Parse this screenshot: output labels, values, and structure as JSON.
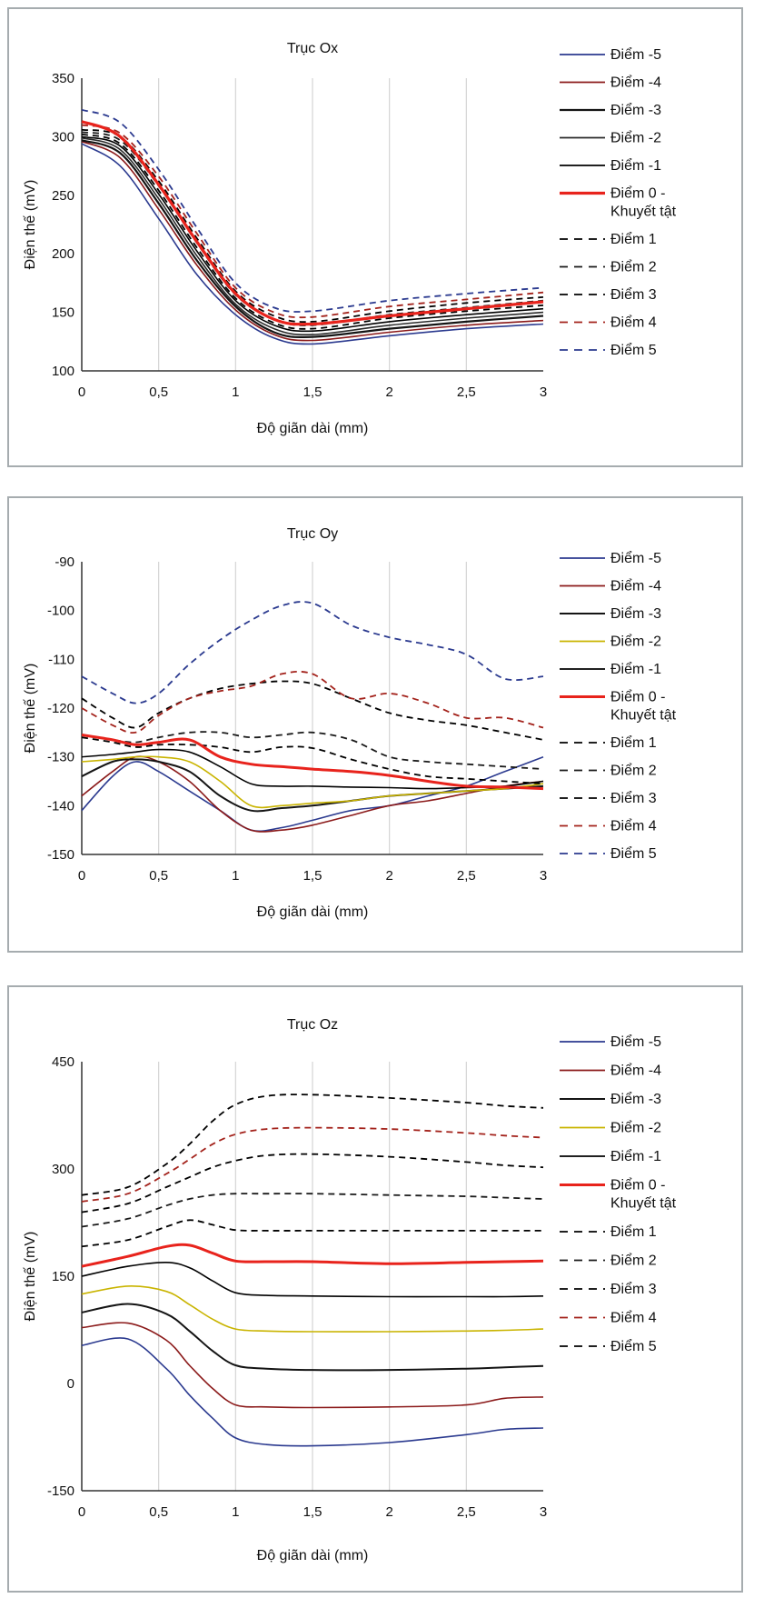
{
  "chart_data": [
    {
      "type": "line",
      "title": "Trục Ox",
      "xlabel": "Độ giãn dài (mm)",
      "ylabel": "Điện thế (mV)",
      "xlim": [
        0,
        3
      ],
      "ylim": [
        100,
        350
      ],
      "xticks": [
        "0",
        "0,5",
        "1",
        "1,5",
        "2",
        "2,5",
        "3"
      ],
      "yticks": [
        "100",
        "150",
        "200",
        "250",
        "300",
        "350"
      ],
      "grid": "vertical",
      "legend": "right",
      "x": [
        0,
        0.25,
        0.5,
        0.75,
        1.0,
        1.25,
        1.5,
        2.0,
        2.5,
        3.0
      ],
      "series": [
        {
          "name": "Điểm -5",
          "color": "#2b3a8f",
          "dash": "solid",
          "width": 1.6,
          "values": [
            294,
            275,
            230,
            182,
            148,
            128,
            123,
            130,
            136,
            140
          ]
        },
        {
          "name": "Điểm -4",
          "color": "#8b1a1a",
          "dash": "solid",
          "width": 1.6,
          "values": [
            296,
            282,
            238,
            190,
            152,
            131,
            126,
            133,
            139,
            143
          ]
        },
        {
          "name": "Điểm -3",
          "color": "#141414",
          "dash": "solid",
          "width": 2.2,
          "values": [
            297,
            286,
            243,
            194,
            155,
            133,
            129,
            136,
            142,
            147
          ]
        },
        {
          "name": "Điểm -2",
          "color": "#2a2a2a",
          "dash": "solid",
          "width": 1.6,
          "values": [
            299,
            289,
            247,
            198,
            157,
            136,
            131,
            139,
            145,
            150
          ]
        },
        {
          "name": "Điểm -1",
          "color": "#000000",
          "dash": "solid",
          "width": 1.6,
          "values": [
            300,
            292,
            251,
            202,
            160,
            139,
            134,
            142,
            148,
            153
          ]
        },
        {
          "name": "Điểm 0 - Khuyết tật",
          "color": "#e8231c",
          "dash": "solid",
          "width": 3.2,
          "values": [
            313,
            300,
            259,
            210,
            166,
            144,
            140,
            147,
            153,
            159
          ]
        },
        {
          "name": "Điểm 1",
          "color": "#000000",
          "dash": "dashed",
          "width": 1.8,
          "values": [
            302,
            294,
            254,
            205,
            162,
            141,
            136,
            145,
            151,
            156
          ]
        },
        {
          "name": "Điểm 2",
          "color": "#1a1a1a",
          "dash": "dashed",
          "width": 1.8,
          "values": [
            304,
            297,
            258,
            209,
            165,
            144,
            139,
            148,
            154,
            160
          ]
        },
        {
          "name": "Điểm 3",
          "color": "#000000",
          "dash": "dashed",
          "width": 1.8,
          "values": [
            306,
            300,
            262,
            213,
            168,
            147,
            142,
            151,
            158,
            163
          ]
        },
        {
          "name": "Điểm 4",
          "color": "#a3221b",
          "dash": "dashed",
          "width": 1.8,
          "values": [
            310,
            303,
            266,
            217,
            171,
            150,
            146,
            155,
            161,
            167
          ]
        },
        {
          "name": "Điểm 5",
          "color": "#2b3a8f",
          "dash": "dashed",
          "width": 1.8,
          "values": [
            323,
            312,
            272,
            222,
            175,
            154,
            151,
            160,
            166,
            171
          ]
        }
      ]
    },
    {
      "type": "line",
      "title": "Trục Oy",
      "xlabel": "Độ giãn dài (mm)",
      "ylabel": "Điện thế (mV)",
      "xlim": [
        0,
        3
      ],
      "ylim": [
        -150,
        -90
      ],
      "xticks": [
        "0",
        "0,5",
        "1",
        "1,5",
        "2",
        "2,5",
        "3"
      ],
      "yticks": [
        "-150",
        "-140",
        "-130",
        "-120",
        "-110",
        "-100",
        "-90"
      ],
      "grid": "vertical",
      "legend": "right",
      "x": [
        0,
        0.2,
        0.35,
        0.5,
        0.7,
        0.9,
        1.1,
        1.3,
        1.5,
        1.75,
        2.0,
        2.25,
        2.5,
        2.75,
        3.0
      ],
      "series": [
        {
          "name": "Điểm -5",
          "color": "#2b3a8f",
          "dash": "solid",
          "width": 1.6,
          "values": [
            -141,
            -134,
            -131,
            -133,
            -137,
            -141,
            -145,
            -144.5,
            -143,
            -141,
            -140,
            -138,
            -136,
            -133,
            -130
          ]
        },
        {
          "name": "Điểm -4",
          "color": "#8b1a1a",
          "dash": "solid",
          "width": 1.6,
          "values": [
            -138,
            -133,
            -130,
            -131,
            -135,
            -141,
            -145,
            -145,
            -144,
            -142,
            -140,
            -139,
            -137.5,
            -136,
            -135
          ]
        },
        {
          "name": "Điểm -3",
          "color": "#141414",
          "dash": "solid",
          "width": 2.0,
          "values": [
            -134,
            -131,
            -130.5,
            -131,
            -133,
            -138,
            -141,
            -140.5,
            -140,
            -139,
            -138,
            -137.5,
            -137,
            -136.5,
            -136
          ]
        },
        {
          "name": "Điểm -2",
          "color": "#c9b400",
          "dash": "solid",
          "width": 1.6,
          "values": [
            -131,
            -130.5,
            -130,
            -130,
            -131,
            -135,
            -140,
            -140,
            -139.5,
            -139,
            -138,
            -137.5,
            -137,
            -136.5,
            -135.5
          ]
        },
        {
          "name": "Điểm -1",
          "color": "#000000",
          "dash": "solid",
          "width": 1.6,
          "values": [
            -130,
            -129.5,
            -129,
            -128.5,
            -129,
            -132,
            -135.5,
            -136,
            -136,
            -136.2,
            -136.3,
            -136.5,
            -136.3,
            -136,
            -135
          ]
        },
        {
          "name": "Điểm 0 - Khuyết tật",
          "color": "#e8231c",
          "dash": "solid",
          "width": 3.0,
          "values": [
            -125.5,
            -126.5,
            -127.5,
            -127,
            -126.5,
            -130,
            -131.5,
            -132,
            -132.5,
            -133,
            -133.8,
            -135,
            -136,
            -136.2,
            -136.5
          ]
        },
        {
          "name": "Điểm 1",
          "color": "#000000",
          "dash": "dashed",
          "width": 1.8,
          "values": [
            -126,
            -127,
            -128,
            -127.5,
            -127.5,
            -128,
            -129,
            -128,
            -128.2,
            -130.5,
            -132.5,
            -134,
            -134.5,
            -135,
            -135.5
          ]
        },
        {
          "name": "Điểm 2",
          "color": "#1a1a1a",
          "dash": "dashed",
          "width": 1.8,
          "values": [
            -125.5,
            -126.5,
            -127,
            -126,
            -125,
            -125,
            -126,
            -125.5,
            -125,
            -126.5,
            -130,
            -131,
            -131.5,
            -132,
            -132.5
          ]
        },
        {
          "name": "Điểm 3",
          "color": "#000000",
          "dash": "dashed",
          "width": 1.8,
          "values": [
            -118,
            -122,
            -124,
            -121,
            -118,
            -116,
            -115,
            -114.5,
            -115,
            -118,
            -121,
            -122.5,
            -123.5,
            -125,
            -126.5
          ]
        },
        {
          "name": "Điểm 4",
          "color": "#a3221b",
          "dash": "dashed",
          "width": 1.8,
          "values": [
            -120,
            -123.5,
            -125,
            -121.5,
            -118,
            -116.5,
            -115.5,
            -113,
            -113,
            -118,
            -117,
            -119,
            -122,
            -122,
            -124
          ]
        },
        {
          "name": "Điểm 5",
          "color": "#2b3a8f",
          "dash": "dashed",
          "width": 1.8,
          "values": [
            -113.5,
            -117,
            -119,
            -117,
            -111,
            -106,
            -102,
            -99,
            -98.5,
            -103,
            -105.5,
            -107,
            -109,
            -114,
            -113.5
          ]
        }
      ]
    },
    {
      "type": "line",
      "title": "Trục Oz",
      "xlabel": "Độ giãn dài (mm)",
      "ylabel": "Điện thế (mV)",
      "xlim": [
        0,
        3
      ],
      "ylim": [
        -150,
        500
      ],
      "xticks": [
        "0",
        "0,5",
        "1",
        "1,5",
        "2",
        "2,5",
        "3"
      ],
      "yticks": [
        "-150",
        "0",
        "150",
        "300",
        "450"
      ],
      "grid": "vertical",
      "legend": "right",
      "x": [
        0,
        0.3,
        0.55,
        0.7,
        0.85,
        1.0,
        1.2,
        1.5,
        2.0,
        2.5,
        2.75,
        3.0
      ],
      "series": [
        {
          "name": "Điểm -5",
          "color": "#2b3a8f",
          "dash": "solid",
          "width": 1.6,
          "values": [
            70,
            80,
            35,
            -5,
            -40,
            -70,
            -80,
            -82,
            -77,
            -65,
            -57,
            -55
          ]
        },
        {
          "name": "Điểm -4",
          "color": "#8b1a1a",
          "dash": "solid",
          "width": 1.6,
          "values": [
            97,
            104,
            78,
            40,
            5,
            -20,
            -23,
            -24,
            -23,
            -20,
            -10,
            -8
          ]
        },
        {
          "name": "Điểm -3",
          "color": "#141414",
          "dash": "solid",
          "width": 2.0,
          "values": [
            120,
            133,
            118,
            92,
            62,
            40,
            35,
            33,
            33,
            35,
            37,
            39
          ]
        },
        {
          "name": "Điểm -2",
          "color": "#c9b400",
          "dash": "solid",
          "width": 1.6,
          "values": [
            148,
            160,
            152,
            132,
            110,
            95,
            92,
            91,
            91,
            92,
            93,
            95
          ]
        },
        {
          "name": "Điểm -1",
          "color": "#000000",
          "dash": "solid",
          "width": 1.6,
          "values": [
            175,
            190,
            196,
            188,
            168,
            150,
            146,
            145,
            144,
            144,
            144,
            145
          ]
        },
        {
          "name": "Điểm 0 - Khuyết tật",
          "color": "#e8231c",
          "dash": "solid",
          "width": 3.0,
          "values": [
            190,
            205,
            220,
            222,
            210,
            198,
            197,
            197,
            194,
            196,
            197,
            198
          ]
        },
        {
          "name": "Điểm 1",
          "color": "#000000",
          "dash": "dashed",
          "width": 1.8,
          "values": [
            220,
            230,
            250,
            260,
            253,
            245,
            244,
            244,
            244,
            244,
            244,
            244
          ]
        },
        {
          "name": "Điểm 2",
          "color": "#1a1a1a",
          "dash": "dashed",
          "width": 1.8,
          "values": [
            250,
            262,
            282,
            292,
            298,
            300,
            300,
            300,
            298,
            296,
            294,
            292
          ]
        },
        {
          "name": "Điểm 3",
          "color": "#000000",
          "dash": "dashed",
          "width": 1.8,
          "values": [
            272,
            285,
            310,
            325,
            340,
            350,
            358,
            360,
            356,
            348,
            343,
            340
          ]
        },
        {
          "name": "Điểm 4",
          "color": "#a3221b",
          "dash": "dashed",
          "width": 1.8,
          "values": [
            288,
            300,
            330,
            352,
            375,
            390,
            398,
            400,
            398,
            392,
            388,
            385
          ]
        },
        {
          "name": "Điểm 5",
          "color": "#000000",
          "dash": "dashed",
          "width": 1.8,
          "values": [
            298,
            310,
            345,
            375,
            410,
            435,
            448,
            450,
            445,
            438,
            433,
            430
          ]
        }
      ]
    }
  ]
}
